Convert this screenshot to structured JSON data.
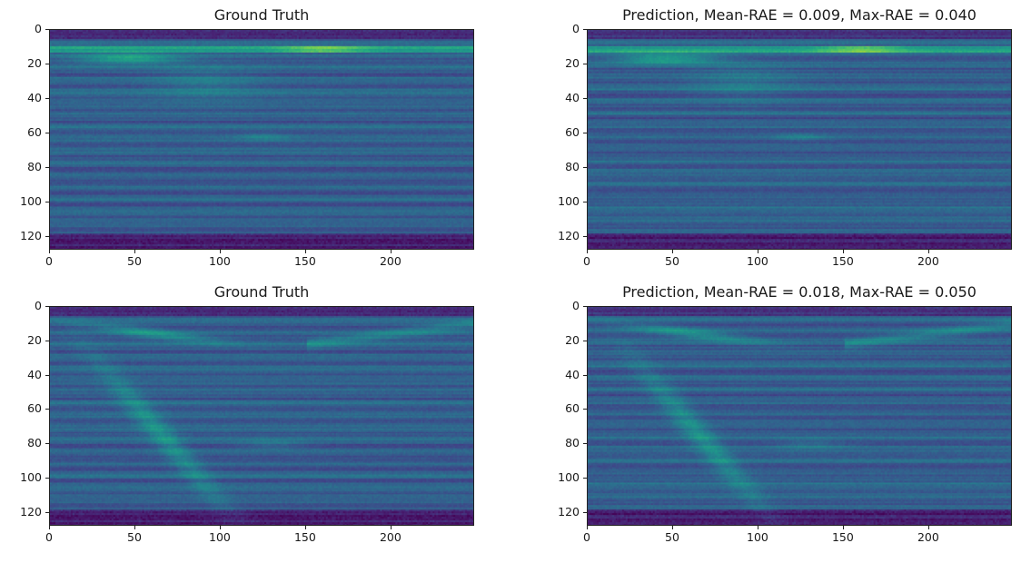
{
  "figure": {
    "background": "#ffffff",
    "colormap": "viridis"
  },
  "chart_data": [
    {
      "type": "heatmap",
      "title": "Ground Truth",
      "xlim": [
        0,
        249
      ],
      "ylim": [
        128,
        0
      ],
      "x_ticks": [
        "0",
        "50",
        "100",
        "150",
        "200"
      ],
      "y_ticks": [
        "0",
        "20",
        "40",
        "60",
        "80",
        "100",
        "120"
      ],
      "grid": false
    },
    {
      "type": "heatmap",
      "title": "Prediction, Mean-RAE = 0.009, Max-RAE = 0.040",
      "xlim": [
        0,
        249
      ],
      "ylim": [
        128,
        0
      ],
      "x_ticks": [
        "0",
        "50",
        "100",
        "150",
        "200"
      ],
      "y_ticks": [
        "0",
        "20",
        "40",
        "60",
        "80",
        "100",
        "120"
      ],
      "grid": false
    },
    {
      "type": "heatmap",
      "title": "Ground Truth",
      "xlim": [
        0,
        249
      ],
      "ylim": [
        128,
        0
      ],
      "x_ticks": [
        "0",
        "50",
        "100",
        "150",
        "200"
      ],
      "y_ticks": [
        "0",
        "20",
        "40",
        "60",
        "80",
        "100",
        "120"
      ],
      "grid": false
    },
    {
      "type": "heatmap",
      "title": "Prediction, Mean-RAE = 0.018, Max-RAE = 0.050",
      "xlim": [
        0,
        249
      ],
      "ylim": [
        128,
        0
      ],
      "x_ticks": [
        "0",
        "50",
        "100",
        "150",
        "200"
      ],
      "y_ticks": [
        "0",
        "20",
        "40",
        "60",
        "80",
        "100",
        "120"
      ],
      "grid": false
    }
  ]
}
